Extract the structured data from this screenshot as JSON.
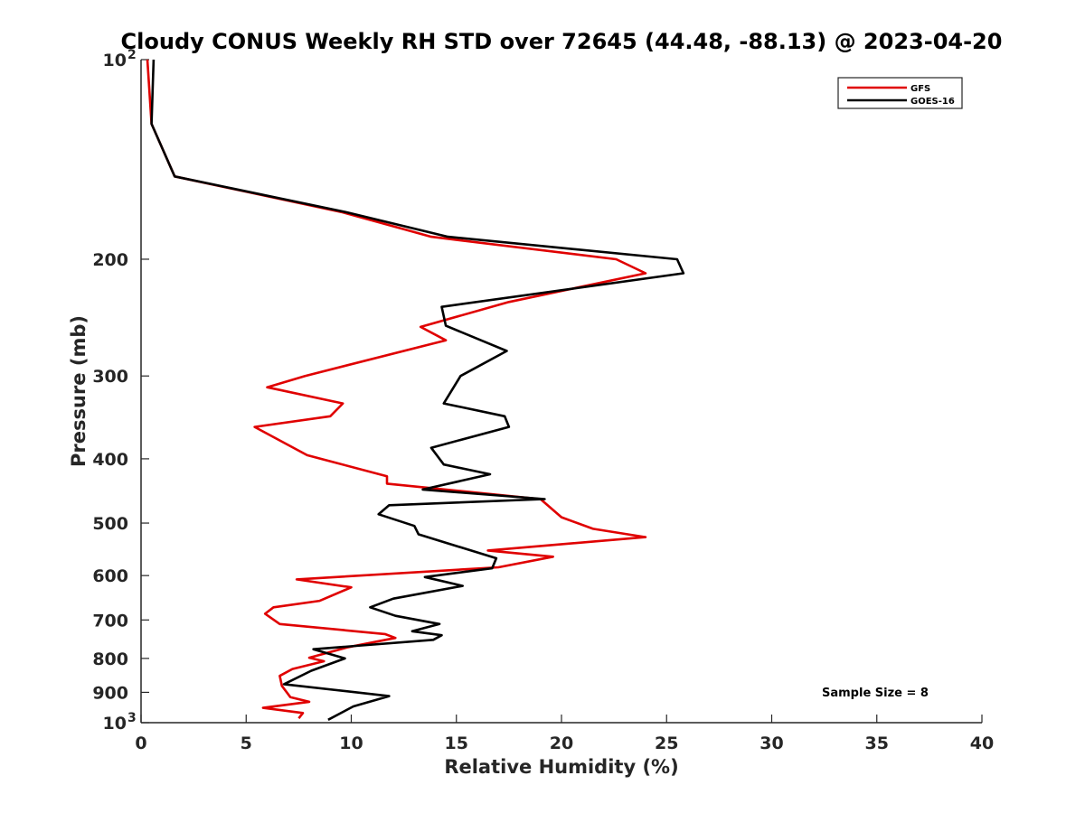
{
  "chart_data": {
    "type": "line",
    "title": "Cloudy CONUS Weekly RH STD over 72645 (44.48, -88.13) @ 2023-04-20",
    "xlabel": "Relative Humidity (%)",
    "ylabel": "Pressure (mb)",
    "xlim": [
      0,
      40
    ],
    "ylim": [
      100,
      1000
    ],
    "y_scale": "log",
    "y_reversed": true,
    "x_ticks": [
      "0",
      "5",
      "10",
      "15",
      "20",
      "25",
      "30",
      "35",
      "40"
    ],
    "y_ticks": [
      {
        "value": 100,
        "label": "10",
        "sup": "2"
      },
      {
        "value": 200,
        "label": "200"
      },
      {
        "value": 300,
        "label": "300"
      },
      {
        "value": 400,
        "label": "400"
      },
      {
        "value": 500,
        "label": "500"
      },
      {
        "value": 600,
        "label": "600"
      },
      {
        "value": 700,
        "label": "700"
      },
      {
        "value": 800,
        "label": "800"
      },
      {
        "value": 900,
        "label": "900"
      },
      {
        "value": 1000,
        "label": "10",
        "sup": "3"
      }
    ],
    "grid": false,
    "legend_position": "top-right",
    "annotation": "Sample Size = 8",
    "series": [
      {
        "name": "GFS",
        "color": "#e00000",
        "points": [
          [
            0.3,
            100
          ],
          [
            0.5,
            125
          ],
          [
            1.6,
            150
          ],
          [
            9.6,
            170
          ],
          [
            13.8,
            185
          ],
          [
            22.6,
            200
          ],
          [
            24.0,
            210
          ],
          [
            17.5,
            232
          ],
          [
            13.3,
            253
          ],
          [
            14.5,
            265
          ],
          [
            7.8,
            300
          ],
          [
            6.0,
            312
          ],
          [
            9.6,
            330
          ],
          [
            9.0,
            345
          ],
          [
            5.4,
            358
          ],
          [
            7.9,
            395
          ],
          [
            11.7,
            425
          ],
          [
            11.7,
            436
          ],
          [
            19.0,
            460
          ],
          [
            20.0,
            490
          ],
          [
            21.5,
            510
          ],
          [
            24.0,
            525
          ],
          [
            16.5,
            550
          ],
          [
            19.6,
            562
          ],
          [
            17.0,
            583
          ],
          [
            7.4,
            608
          ],
          [
            10.0,
            625
          ],
          [
            8.5,
            655
          ],
          [
            6.3,
            670
          ],
          [
            5.9,
            685
          ],
          [
            6.6,
            710
          ],
          [
            11.6,
            735
          ],
          [
            12.1,
            745
          ],
          [
            9.8,
            770
          ],
          [
            8.0,
            798
          ],
          [
            8.7,
            808
          ],
          [
            7.2,
            830
          ],
          [
            6.6,
            850
          ],
          [
            6.7,
            880
          ],
          [
            7.1,
            915
          ],
          [
            8.0,
            930
          ],
          [
            5.8,
            950
          ],
          [
            7.7,
            967
          ],
          [
            7.5,
            985
          ]
        ]
      },
      {
        "name": "GOES-16",
        "color": "#000000",
        "points": [
          [
            0.6,
            100
          ],
          [
            0.5,
            125
          ],
          [
            1.6,
            150
          ],
          [
            9.8,
            170
          ],
          [
            14.6,
            185
          ],
          [
            25.5,
            200
          ],
          [
            25.8,
            210
          ],
          [
            14.3,
            236
          ],
          [
            14.5,
            252
          ],
          [
            17.4,
            275
          ],
          [
            15.2,
            300
          ],
          [
            14.4,
            330
          ],
          [
            17.3,
            345
          ],
          [
            17.5,
            358
          ],
          [
            13.8,
            385
          ],
          [
            14.4,
            408
          ],
          [
            16.6,
            422
          ],
          [
            13.4,
            445
          ],
          [
            19.2,
            460
          ],
          [
            11.8,
            470
          ],
          [
            11.3,
            485
          ],
          [
            13.0,
            505
          ],
          [
            13.2,
            520
          ],
          [
            16.9,
            565
          ],
          [
            16.7,
            585
          ],
          [
            13.5,
            603
          ],
          [
            15.3,
            622
          ],
          [
            12.0,
            650
          ],
          [
            10.9,
            670
          ],
          [
            12.1,
            690
          ],
          [
            14.2,
            710
          ],
          [
            12.9,
            728
          ],
          [
            14.3,
            738
          ],
          [
            13.9,
            750
          ],
          [
            8.2,
            775
          ],
          [
            9.7,
            800
          ],
          [
            8.1,
            835
          ],
          [
            6.8,
            875
          ],
          [
            11.8,
            912
          ],
          [
            10.1,
            945
          ],
          [
            8.9,
            990
          ]
        ]
      }
    ]
  }
}
